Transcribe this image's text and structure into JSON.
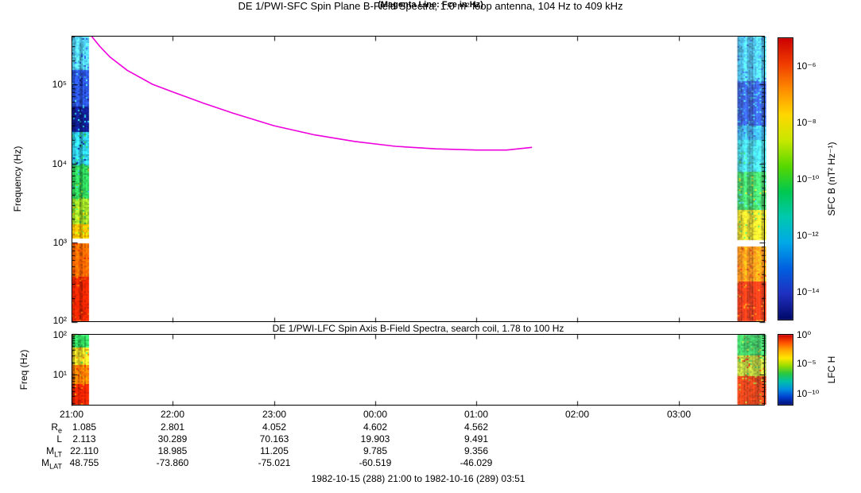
{
  "header": {
    "title": "DE 1/PWI-SFC  Spin Plane B-Field Spectra, 1.0 m² loop antenna, 104 Hz to 409 kHz",
    "subtitle": "(Magenta Line: Fce in Hz)"
  },
  "sfc_panel": {
    "ylabel": "Frequency (Hz)",
    "yticks": [
      "10⁵",
      "10⁴",
      "10³",
      "10²"
    ],
    "colorbar": {
      "label": "SFC B (nT² Hz⁻¹)",
      "ticks": [
        "10⁻⁶",
        "10⁻⁸",
        "10⁻¹⁰",
        "10⁻¹²",
        "10⁻¹⁴"
      ]
    }
  },
  "lfc_panel": {
    "title": "DE 1/PWI-LFC  Spin Axis B-Field Spectra, search coil, 1.78 to 100 Hz",
    "ylabel": "Freq (Hz)",
    "yticks": [
      "10²",
      "10¹"
    ],
    "colorbar": {
      "label": "LFC H",
      "ticks": [
        "10⁰",
        "10⁻⁵",
        "10⁻¹⁰"
      ]
    }
  },
  "xaxis": {
    "ticks": [
      "21:00",
      "22:00",
      "23:00",
      "00:00",
      "01:00",
      "02:00",
      "03:00"
    ]
  },
  "ephemeris": {
    "rows": [
      {
        "label": "R",
        "sub": "e",
        "values": [
          "1.085",
          "2.801",
          "4.052",
          "4.602",
          "4.562"
        ]
      },
      {
        "label": "L",
        "sub": "",
        "values": [
          "2.113",
          "30.289",
          "70.163",
          "19.903",
          "9.491"
        ]
      },
      {
        "label": "M",
        "sub": "LT",
        "values": [
          "22.110",
          "18.985",
          "11.205",
          "9.785",
          "9.356"
        ]
      },
      {
        "label": "M",
        "sub": "LAT",
        "values": [
          "48.755",
          "-73.860",
          "-75.021",
          "-60.519",
          "-46.029"
        ]
      }
    ]
  },
  "caption": "1982-10-15 (288) 21:00 to 1982-10-16 (289) 03:51",
  "chart_data": [
    {
      "type": "heatmap",
      "panel": "sfc",
      "title": "DE 1/PWI-SFC  Spin Plane B-Field Spectra, 1.0 m² loop antenna, 104 Hz to 409 kHz",
      "subtitle": "(Magenta Line: Fce in Hz)",
      "ylabel": "Frequency (Hz)",
      "y_scale": "log",
      "y_range_hz": [
        100,
        409000
      ],
      "x_start": "1982-10-15 21:00",
      "x_end": "1982-10-16 03:51",
      "x_span_hours": 6.85,
      "x_tick_hours": [
        0,
        1,
        2,
        3,
        4,
        5,
        6
      ],
      "colorbar": {
        "label": "SFC B (nT² Hz⁻¹)",
        "tick_values": [
          "1e-6",
          "1e-8",
          "1e-10",
          "1e-12",
          "1e-14"
        ],
        "stops": [
          "#cc0000",
          "#f03c00",
          "#ff8c00",
          "#ffd800",
          "#c8e800",
          "#58d800",
          "#00c850",
          "#00c8b0",
          "#00a8e8",
          "#0060e0",
          "#2030c0",
          "#000868"
        ]
      },
      "strips": [
        {
          "t0_hours": 0.0,
          "t1_hours": 0.16,
          "bands": [
            [
              409000,
              150000,
              "#4ec8ee"
            ],
            [
              150000,
              52000,
              "#2850d8"
            ],
            [
              52000,
              25000,
              "#101c8a"
            ],
            [
              25000,
              9500,
              "#2cc0dc"
            ],
            [
              9500,
              3600,
              "#2cc254"
            ],
            [
              3600,
              1700,
              "#96d024"
            ],
            [
              1700,
              1150,
              "#f0b400"
            ],
            [
              1150,
              980,
              "#ffffff"
            ],
            [
              980,
              380,
              "#ff6400"
            ],
            [
              380,
              100,
              "#e62400"
            ]
          ]
        },
        {
          "t0_hours": 6.58,
          "t1_hours": 6.85,
          "bands": [
            [
              409000,
              110000,
              "#38b4e6"
            ],
            [
              110000,
              30000,
              "#2048cc"
            ],
            [
              30000,
              20000,
              "#28a0dc"
            ],
            [
              20000,
              8000,
              "#30c8d8"
            ],
            [
              8000,
              2600,
              "#2cc254"
            ],
            [
              2600,
              1100,
              "#d8cc14"
            ],
            [
              1100,
              900,
              "#ffffff"
            ],
            [
              900,
              320,
              "#ff8800"
            ],
            [
              320,
              100,
              "#e62400"
            ]
          ]
        }
      ],
      "fce_line": {
        "label": "Fce (electron cyclotron frequency)",
        "color": "#ee00dd",
        "points_hours_hz": [
          [
            0.2,
            409000
          ],
          [
            0.28,
            300000
          ],
          [
            0.38,
            220000
          ],
          [
            0.55,
            150000
          ],
          [
            0.8,
            100000
          ],
          [
            1.0,
            80000
          ],
          [
            1.3,
            58000
          ],
          [
            1.6,
            43000
          ],
          [
            2.0,
            30000
          ],
          [
            2.4,
            23000
          ],
          [
            2.8,
            19000
          ],
          [
            3.2,
            16500
          ],
          [
            3.6,
            15300
          ],
          [
            4.0,
            14800
          ],
          [
            4.3,
            14800
          ],
          [
            4.55,
            16000
          ]
        ]
      }
    },
    {
      "type": "heatmap",
      "panel": "lfc",
      "title": "DE 1/PWI-LFC  Spin Axis B-Field Spectra, search coil, 1.78 to 100 Hz",
      "ylabel": "Freq (Hz)",
      "y_scale": "log",
      "y_range_hz": [
        1.78,
        100
      ],
      "x_span_hours": 6.85,
      "colorbar": {
        "label": "LFC H",
        "tick_values": [
          "1e0",
          "1e-5",
          "1e-10"
        ],
        "stops": [
          "#cc0000",
          "#ff5000",
          "#ffaa00",
          "#ffe800",
          "#98dc00",
          "#28c840",
          "#00c0a8",
          "#0090e0",
          "#0040d0",
          "#001078"
        ]
      },
      "strips": [
        {
          "t0_hours": 0.0,
          "t1_hours": 0.16,
          "bands": [
            [
              100,
              45,
              "#2cc254"
            ],
            [
              45,
              18,
              "#cfc020"
            ],
            [
              18,
              6,
              "#f07000"
            ],
            [
              6,
              1.78,
              "#e02000"
            ]
          ]
        },
        {
          "t0_hours": 6.58,
          "t1_hours": 6.85,
          "bands": [
            [
              100,
              30,
              "#2cc254"
            ],
            [
              30,
              9,
              "#b0c828"
            ],
            [
              9,
              1.78,
              "#e83000"
            ]
          ]
        }
      ]
    }
  ]
}
